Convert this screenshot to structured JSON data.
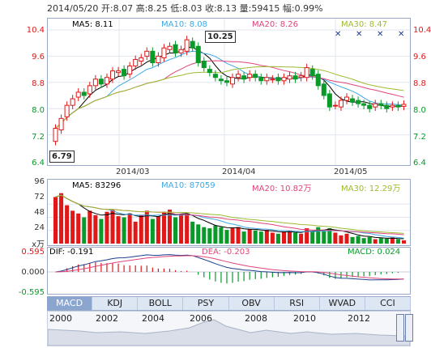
{
  "header": {
    "summary": "2014/05/20 开:8.07  高:8.25  低:8.03  收:8.13  量:59415  幅:0.99%"
  },
  "main_chart": {
    "ma5": "MA5: 8.11",
    "ma10": "MA10: 8.08",
    "ma20": "MA20: 8.26",
    "ma30": "MA30: 8.47",
    "y_ticks": [
      "10.4",
      "9.6",
      "8.8",
      "8.0",
      "7.2",
      "6.4"
    ],
    "dates": [
      "2014/03",
      "2014/04",
      "2014/05"
    ],
    "high_callout": "10.25",
    "low_callout": "6.79",
    "colors": {
      "ma5": "#000000",
      "ma10": "#3fa9e6",
      "ma20": "#e0457b",
      "ma30": "#9dbb2f",
      "up": "#e01818",
      "down": "#0a9a2a"
    }
  },
  "volume_chart": {
    "ma5": "MA5: 83296",
    "ma10": "MA10: 87059",
    "ma20": "MA20: 10.82万",
    "ma30": "MA30: 12.29万",
    "y_ticks": [
      "96",
      "72",
      "48",
      "24"
    ],
    "unit": "x万"
  },
  "macd_chart": {
    "dif": "DIF: -0.191",
    "dea": "DEA: -0.203",
    "macd": "MACD: 0.024",
    "y_ticks": [
      "0.595",
      "0.000",
      "-0.595"
    ]
  },
  "tabs": [
    "MACD",
    "KDJ",
    "BOLL",
    "PSY",
    "OBV",
    "RSI",
    "WVAD",
    "CCI"
  ],
  "active_tab": "MACD",
  "timeline": {
    "years": [
      "2000",
      "2002",
      "2004",
      "2006",
      "2008",
      "2010",
      "2012"
    ]
  },
  "chart_data": {
    "type": "candlestick",
    "title": "",
    "ylim": [
      6.4,
      10.4
    ],
    "x_labels": [
      "2014/03",
      "2014/04",
      "2014/05"
    ],
    "price_series": {
      "open": [
        7.0,
        7.35,
        7.75,
        8.1,
        8.35,
        8.5,
        8.45,
        8.7,
        8.9,
        8.75,
        8.9,
        9.1,
        9.2,
        9.05,
        9.3,
        9.45,
        9.6,
        9.75,
        9.4,
        9.55,
        9.8,
        9.95,
        9.7,
        9.75,
        10.05,
        9.9,
        9.45,
        9.2,
        9.05,
        8.9,
        8.85,
        8.75,
        8.95,
        9.0,
        8.95,
        9.05,
        8.95,
        8.85,
        8.9,
        8.95,
        8.85,
        8.9,
        9.0,
        8.95,
        8.95,
        9.2,
        9.05,
        8.75,
        8.45,
        8.1,
        8.05,
        8.25,
        8.3,
        8.25,
        8.15,
        8.1,
        8.05,
        8.15,
        8.1,
        8.05,
        8.1,
        8.07
      ],
      "close": [
        7.4,
        7.7,
        8.1,
        8.3,
        8.5,
        8.4,
        8.7,
        8.9,
        8.75,
        8.95,
        9.15,
        9.15,
        9.0,
        9.3,
        9.5,
        9.55,
        9.75,
        9.4,
        9.6,
        9.85,
        9.9,
        9.7,
        9.8,
        10.1,
        9.85,
        9.4,
        9.25,
        9.1,
        8.95,
        8.85,
        8.8,
        8.95,
        9.05,
        8.9,
        9.05,
        8.95,
        8.85,
        8.95,
        8.9,
        8.85,
        8.95,
        9.0,
        8.9,
        9.0,
        9.25,
        9.0,
        8.7,
        8.4,
        8.05,
        8.1,
        8.25,
        8.35,
        8.2,
        8.15,
        8.1,
        8.0,
        8.15,
        8.1,
        8.0,
        8.1,
        8.05,
        8.13
      ]
    },
    "volume_series": [
      85,
      92,
      70,
      60,
      55,
      48,
      60,
      52,
      45,
      58,
      62,
      50,
      48,
      55,
      40,
      52,
      60,
      45,
      50,
      58,
      62,
      48,
      52,
      55,
      40,
      35,
      30,
      28,
      33,
      30,
      25,
      28,
      30,
      22,
      26,
      24,
      22,
      25,
      20,
      18,
      22,
      24,
      20,
      18,
      28,
      22,
      30,
      25,
      28,
      20,
      15,
      18,
      12,
      14,
      10,
      12,
      8,
      10,
      9,
      11,
      8,
      6
    ],
    "volume_ylim": [
      0,
      96
    ],
    "macd_ylim": [
      -0.595,
      0.595
    ]
  }
}
